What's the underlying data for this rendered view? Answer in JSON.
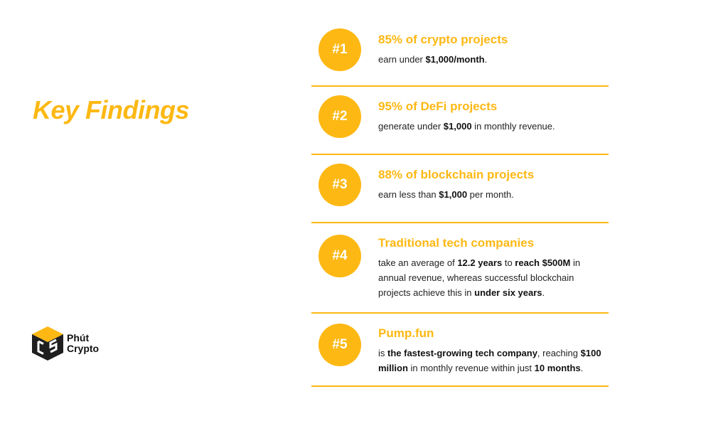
{
  "colors": {
    "accent": "#FDB813",
    "text": "#222222",
    "logo_dark": "#1f1f1f"
  },
  "title": "Key Findings",
  "logo": {
    "line1": "Phút",
    "line2": "Crypto",
    "icon": "cube-logo-icon"
  },
  "findings": [
    {
      "badge": "#1",
      "title": "85% of crypto projects",
      "desc": [
        {
          "t": "earn under "
        },
        {
          "t": "$1,000/month",
          "b": true
        },
        {
          "t": "."
        }
      ]
    },
    {
      "badge": "#2",
      "title": "95% of DeFi projects",
      "desc": [
        {
          "t": "generate under "
        },
        {
          "t": "$1,000",
          "b": true
        },
        {
          "t": " in monthly revenue."
        }
      ]
    },
    {
      "badge": "#3",
      "title": "88% of blockchain projects",
      "desc": [
        {
          "t": "earn less than "
        },
        {
          "t": "$1,000",
          "b": true
        },
        {
          "t": " per month."
        }
      ]
    },
    {
      "badge": "#4",
      "title": "Traditional tech companies",
      "desc": [
        {
          "t": "take an average of "
        },
        {
          "t": "12.2 years",
          "b": true
        },
        {
          "t": " to "
        },
        {
          "t": "reach $500M",
          "b": true
        },
        {
          "t": " in annual revenue, whereas successful blockchain projects achieve this in "
        },
        {
          "t": "under six years",
          "b": true
        },
        {
          "t": "."
        }
      ]
    },
    {
      "badge": "#5",
      "title": "Pump.fun",
      "desc": [
        {
          "t": "is "
        },
        {
          "t": "the fastest-growing tech company",
          "b": true
        },
        {
          "t": ", reaching "
        },
        {
          "t": "$100 million",
          "b": true
        },
        {
          "t": " in monthly revenue within just "
        },
        {
          "t": "10 months",
          "b": true
        },
        {
          "t": "."
        }
      ]
    }
  ]
}
